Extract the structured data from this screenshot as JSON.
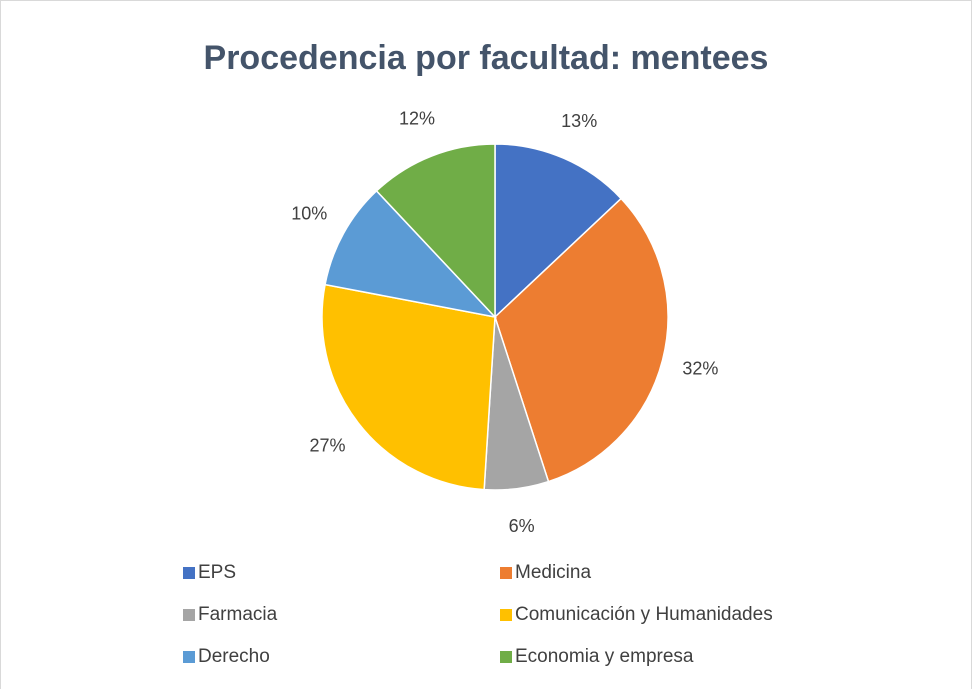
{
  "chart_data": {
    "type": "pie",
    "title": "Procedencia por facultad: mentees",
    "categories": [
      "EPS",
      "Medicina",
      "Farmacia",
      "Comunicación y Humanidades",
      "Derecho",
      "Economia y empresa"
    ],
    "values": [
      13,
      32,
      6,
      27,
      10,
      12
    ],
    "value_labels": [
      "13%",
      "32%",
      "6%",
      "27%",
      "10%",
      "12%"
    ],
    "colors": [
      "#4472c4",
      "#ed7d31",
      "#a5a5a5",
      "#ffc000",
      "#5b9bd5",
      "#70ad47"
    ],
    "legend": "bottom"
  }
}
